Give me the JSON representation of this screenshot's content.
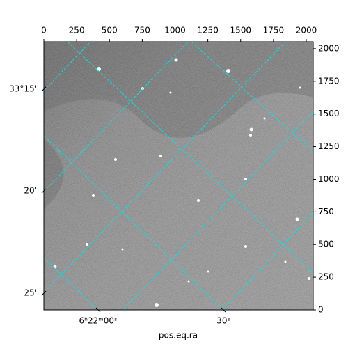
{
  "chart_data": {
    "type": "image",
    "xlabel": "pos.eq.ra",
    "xlim": [
      0,
      2053
    ],
    "ylim": [
      0,
      2053
    ],
    "xticks": [
      0,
      250,
      500,
      750,
      1000,
      1250,
      1500,
      1750,
      2000
    ],
    "yticks": [
      0,
      250,
      500,
      750,
      1000,
      1250,
      1500,
      1750,
      2000
    ],
    "ra_ticks": [
      {
        "value": 414,
        "label": "6ʰ22ᵐ00ˢ"
      },
      {
        "value": 1369,
        "label": "30ˢ"
      }
    ],
    "dec_ticks": [
      {
        "value": 1691,
        "label": "33°15'"
      },
      {
        "value": 912,
        "label": "20'"
      },
      {
        "value": 128,
        "label": "25'"
      }
    ],
    "grid_color": "#00e5e5"
  }
}
